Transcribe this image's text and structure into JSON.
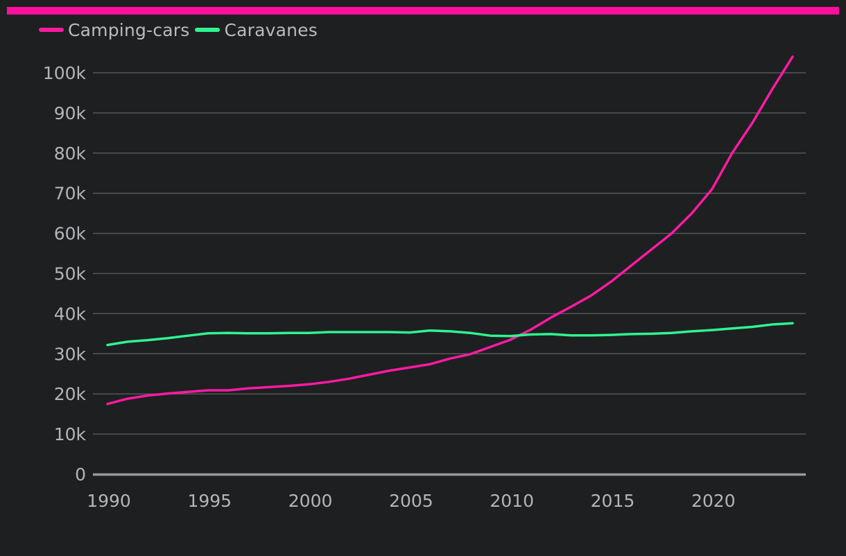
{
  "colors": {
    "background": "#1e1f21",
    "top_bar": "#ff0f9b",
    "grid": "#55575b",
    "axis": "#9a9b9e"
  },
  "chart_data": {
    "type": "line",
    "title": "",
    "xlabel": "",
    "ylabel": "",
    "legend_position": "top-left",
    "grid": true,
    "xlim": [
      1990,
      2024
    ],
    "ylim": [
      0,
      100000
    ],
    "x_ticks": [
      "1990",
      "1995",
      "2000",
      "2005",
      "2010",
      "2015",
      "2020"
    ],
    "x_tick_values": [
      1990,
      1995,
      2000,
      2005,
      2010,
      2015,
      2020
    ],
    "y_ticks": [
      "0",
      "10k",
      "20k",
      "30k",
      "40k",
      "50k",
      "60k",
      "70k",
      "80k",
      "90k",
      "100k"
    ],
    "y_tick_values": [
      0,
      10000,
      20000,
      30000,
      40000,
      50000,
      60000,
      70000,
      80000,
      90000,
      100000
    ],
    "x": [
      1990,
      1991,
      1992,
      1993,
      1994,
      1995,
      1996,
      1997,
      1998,
      1999,
      2000,
      2001,
      2002,
      2003,
      2004,
      2005,
      2006,
      2007,
      2008,
      2009,
      2010,
      2011,
      2012,
      2013,
      2014,
      2015,
      2016,
      2017,
      2018,
      2019,
      2020,
      2021,
      2022,
      2023,
      2024
    ],
    "series": [
      {
        "name": "Camping-cars",
        "color": "#ff1aa3",
        "values": [
          17500,
          18800,
          19600,
          20100,
          20500,
          20900,
          20900,
          21400,
          21700,
          22000,
          22400,
          23000,
          23800,
          24800,
          25800,
          26600,
          27400,
          28800,
          29900,
          31700,
          33500,
          36000,
          39000,
          41700,
          44500,
          48000,
          52000,
          56000,
          60000,
          65000,
          71000,
          80000,
          87500,
          96000,
          104000
        ]
      },
      {
        "name": "Caravanes",
        "color": "#2ef58f",
        "values": [
          32200,
          33000,
          33400,
          33900,
          34500,
          35100,
          35200,
          35100,
          35100,
          35200,
          35200,
          35400,
          35400,
          35400,
          35400,
          35300,
          35800,
          35600,
          35200,
          34500,
          34400,
          34800,
          34900,
          34600,
          34600,
          34700,
          34900,
          35000,
          35200,
          35600,
          35900,
          36300,
          36700,
          37300,
          37600
        ]
      }
    ]
  }
}
